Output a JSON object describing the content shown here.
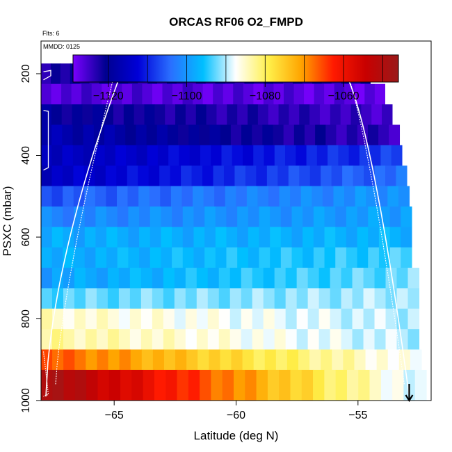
{
  "chart_data": {
    "type": "heatmap",
    "title": "ORCAS RF06 O2_FMPD",
    "annotations": [
      "Flts: 6",
      "MMDD: 0125"
    ],
    "xlabel": "Latitude (deg N)",
    "ylabel": "PSXC (mbar)",
    "xlim": [
      -68.0,
      -52.0
    ],
    "ylim": [
      1000,
      120
    ],
    "y_reversed": true,
    "xticks": [
      -65,
      -60,
      -55
    ],
    "yticks": [
      200,
      400,
      600,
      800,
      1000
    ],
    "colorbar": {
      "range": [
        -1129,
        -1046
      ],
      "ticks": [
        -1120,
        -1100,
        -1080,
        -1060
      ],
      "colors": [
        "#7a00ff",
        "#000090",
        "#0000d8",
        "#2a6fff",
        "#00bfff",
        "#ffffff",
        "#fff04a",
        "#ffa500",
        "#ff1a00",
        "#c80000",
        "#9a1a1a"
      ]
    },
    "cells": {
      "pressure_bands": [
        {
          "p_top": 175,
          "p_bot": 225,
          "lat_end": -54.5,
          "v_start": -1122,
          "v_end": -1122
        },
        {
          "p_top": 225,
          "p_bot": 275,
          "lat_end": -53.9,
          "v_start": -1126,
          "v_end": -1127
        },
        {
          "p_top": 275,
          "p_bot": 325,
          "lat_end": -53.6,
          "v_start": -1120,
          "v_end": -1125
        },
        {
          "p_top": 325,
          "p_bot": 375,
          "lat_end": -53.3,
          "v_start": -1117,
          "v_end": -1124
        },
        {
          "p_top": 375,
          "p_bot": 425,
          "lat_end": -53.2,
          "v_start": -1116,
          "v_end": -1108
        },
        {
          "p_top": 425,
          "p_bot": 475,
          "lat_end": -53.0,
          "v_start": -1115,
          "v_end": -1104
        },
        {
          "p_top": 475,
          "p_bot": 525,
          "lat_end": -52.9,
          "v_start": -1106,
          "v_end": -1100
        },
        {
          "p_top": 525,
          "p_bot": 575,
          "lat_end": -52.8,
          "v_start": -1102,
          "v_end": -1099
        },
        {
          "p_top": 575,
          "p_bot": 625,
          "lat_end": -52.8,
          "v_start": -1098,
          "v_end": -1097
        },
        {
          "p_top": 625,
          "p_bot": 675,
          "lat_end": -52.8,
          "v_start": -1098,
          "v_end": -1094
        },
        {
          "p_top": 675,
          "p_bot": 725,
          "lat_end": -52.5,
          "v_start": -1099,
          "v_end": -1092
        },
        {
          "p_top": 725,
          "p_bot": 775,
          "lat_end": -52.5,
          "v_start": -1093,
          "v_end": -1090
        },
        {
          "p_top": 775,
          "p_bot": 825,
          "lat_end": -52.5,
          "v_start": -1085,
          "v_end": -1090
        },
        {
          "p_top": 825,
          "p_bot": 875,
          "lat_end": -52.5,
          "v_start": -1083,
          "v_end": -1090
        },
        {
          "p_top": 875,
          "p_bot": 925,
          "lat_end": -52.4,
          "v_start": -1066,
          "v_end": -1088
        },
        {
          "p_top": 925,
          "p_bot": 1000,
          "lat_end": -52.2,
          "v_start": -1048,
          "v_end": -1090
        }
      ]
    },
    "flight_track_color": "#ffffff",
    "arrow_marker": {
      "lat": -52.9,
      "pressure": 1000
    }
  }
}
